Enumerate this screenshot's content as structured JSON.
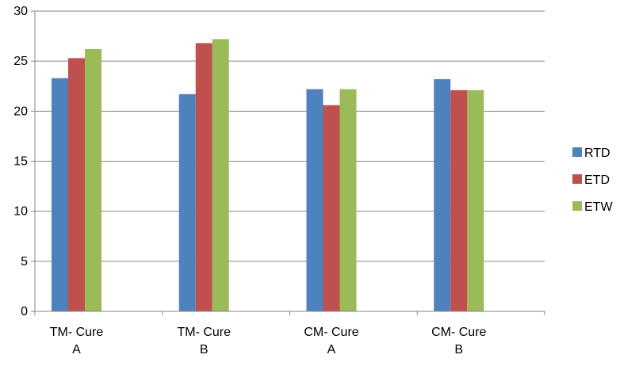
{
  "chart_data": {
    "type": "bar",
    "title": "",
    "xlabel": "",
    "ylabel": "",
    "ylim": [
      0,
      30
    ],
    "yticks": [
      0,
      5,
      10,
      15,
      20,
      25,
      30
    ],
    "grid": "horizontal",
    "legend_position": "right",
    "categories": [
      [
        "TM- Cure",
        "A"
      ],
      [
        "TM- Cure",
        "B"
      ],
      [
        "CM- Cure",
        "A"
      ],
      [
        "CM- Cure",
        "B"
      ]
    ],
    "series": [
      {
        "name": "RTD",
        "color": "#4F81BD",
        "values": [
          23.3,
          21.7,
          22.2,
          23.2
        ]
      },
      {
        "name": "ETD",
        "color": "#C0504D",
        "values": [
          25.3,
          26.8,
          20.6,
          22.1
        ]
      },
      {
        "name": "ETW",
        "color": "#9BBB59",
        "values": [
          26.2,
          27.2,
          22.2,
          22.1
        ]
      }
    ]
  }
}
